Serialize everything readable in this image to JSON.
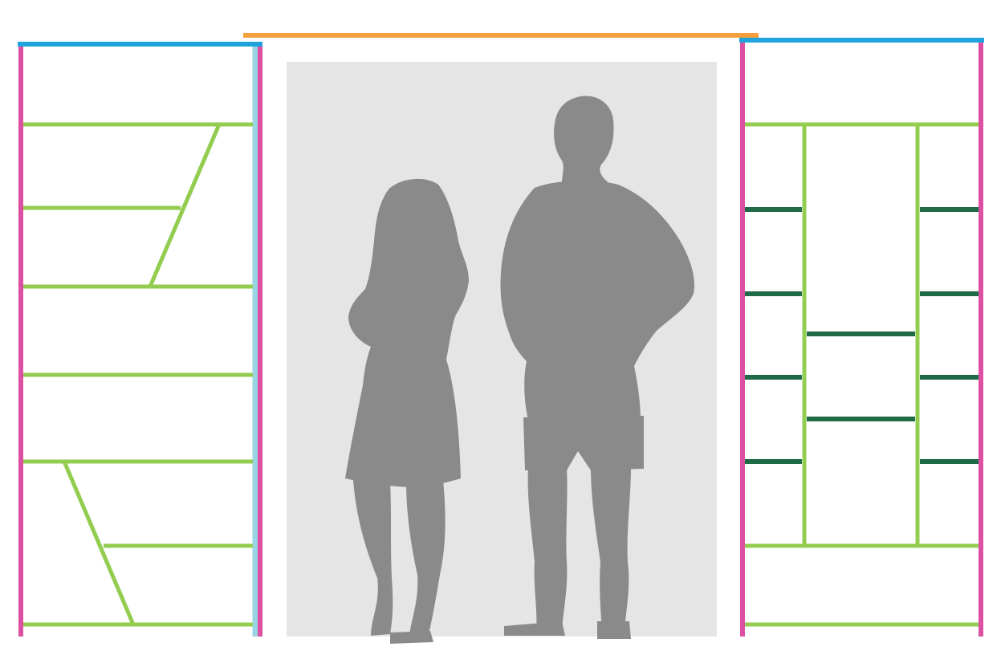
{
  "colors": {
    "background": "#ffffff",
    "upright": "#dd4fa3",
    "top_rail_side": "#1fa3dc",
    "top_rail_center": "#f5a03c",
    "side_trim": "#9ad5e6",
    "shelf_light": "#92cd50",
    "shelf_dark": "#1e6b45",
    "opening": "#e5e5e5",
    "silhouette": "#8a8a8a"
  },
  "icons": {
    "woman": "woman-silhouette-icon",
    "man": "man-silhouette-icon"
  }
}
